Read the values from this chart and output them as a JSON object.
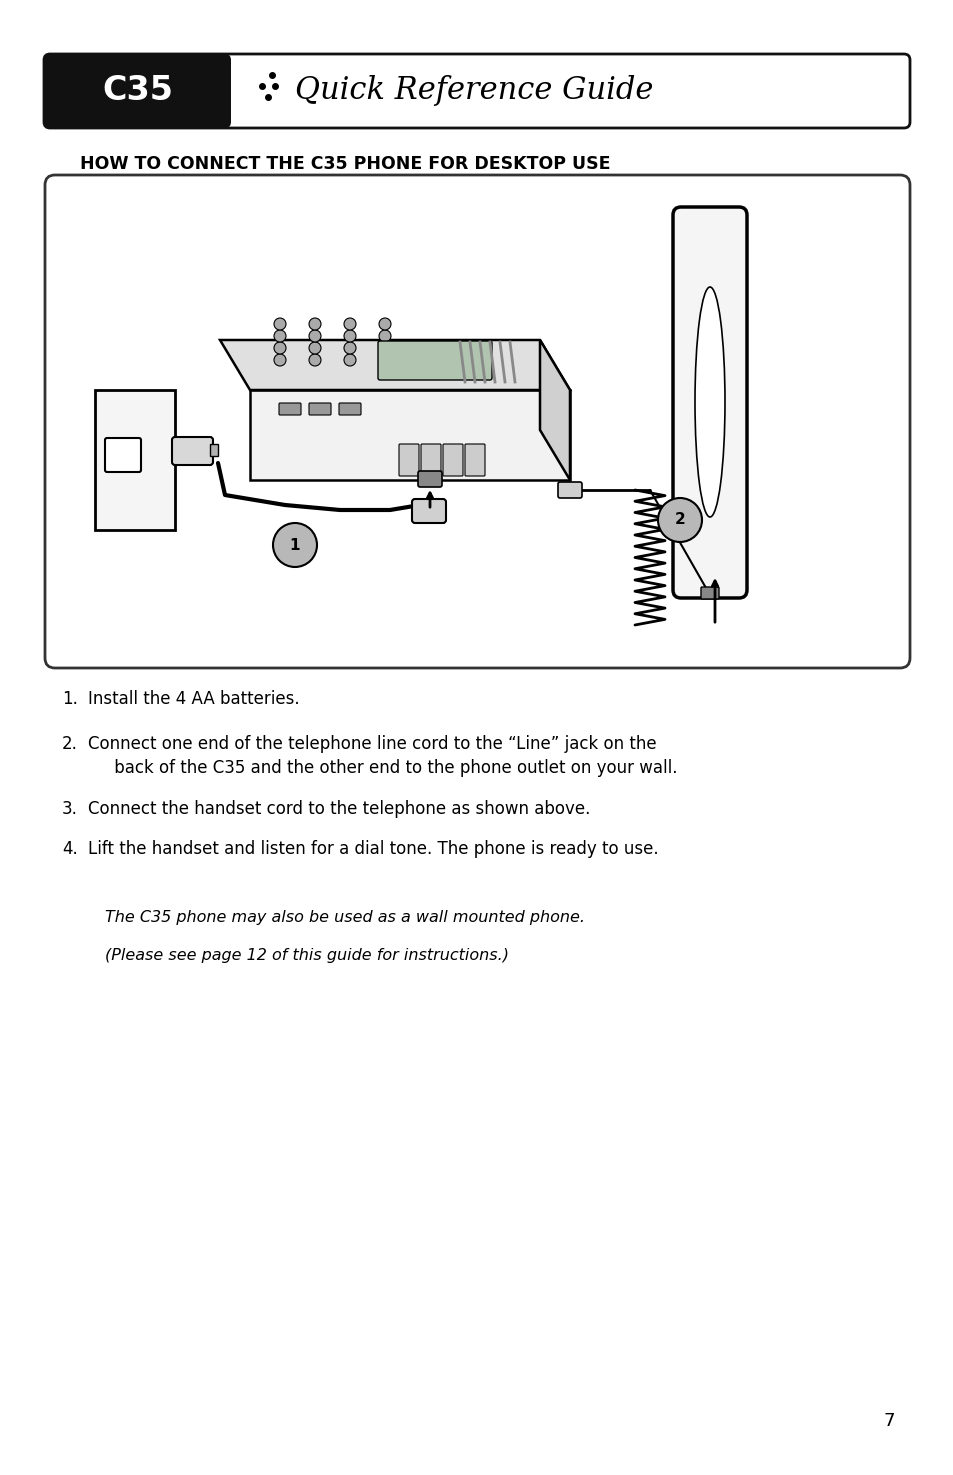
{
  "bg_color": "#ffffff",
  "header_text_c35": "C35",
  "header_title": "Quick Reference Guide",
  "section_title": "HOW TO CONNECT THE C35 PHONE FOR DESKTOP USE",
  "instructions": [
    "Install the 4 AA batteries.",
    "Connect one end of the telephone line cord to the “Line” jack on the\nback of the C35 and the other end to the phone outlet on your wall.",
    "Connect the handset cord to the telephone as shown above.",
    "Lift the handset and listen for a dial tone. The phone is ready to use."
  ],
  "italic_note_line1": "The C35 phone may also be used as a wall mounted phone.",
  "italic_note_line2": "(Please see page 12 of this guide for instructions.)",
  "page_number": "7"
}
